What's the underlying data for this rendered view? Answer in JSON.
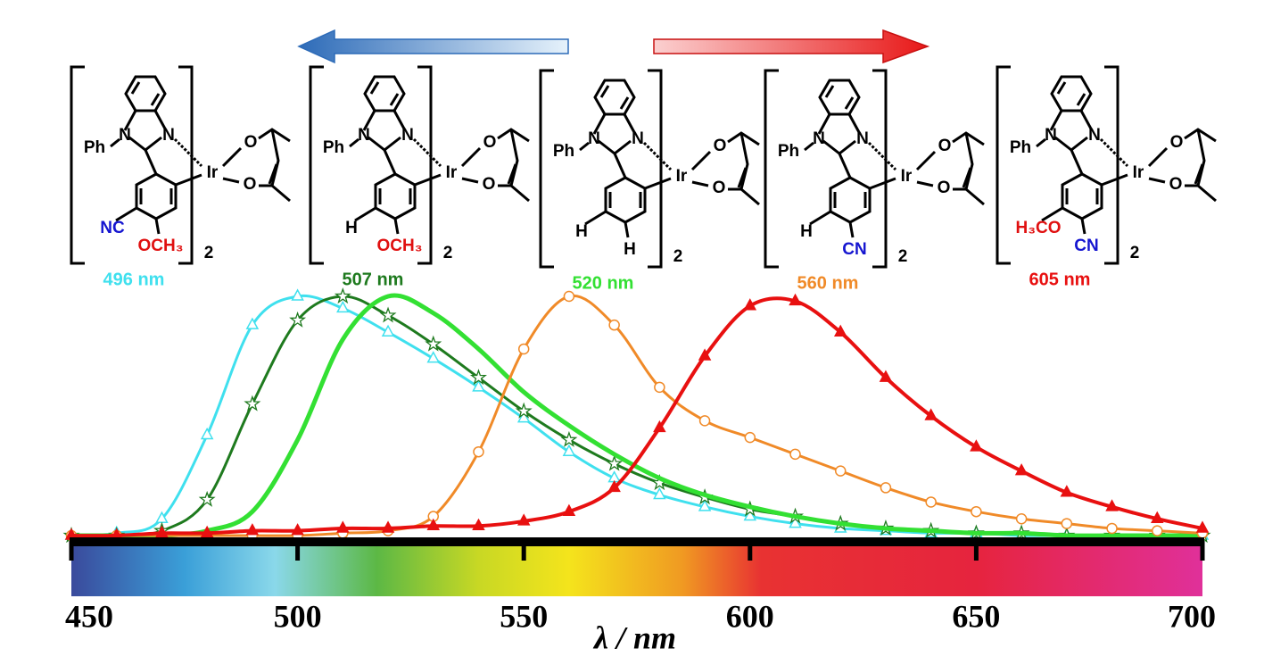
{
  "chart_data": {
    "type": "line",
    "x": [
      450,
      460,
      470,
      480,
      490,
      500,
      510,
      520,
      530,
      540,
      550,
      560,
      570,
      580,
      590,
      600,
      610,
      620,
      630,
      640,
      650,
      660,
      670,
      680,
      690,
      700
    ],
    "series": [
      {
        "name": "496 nm",
        "color": "#3fe0ee",
        "marker": "triangle-open",
        "values": [
          0,
          0.01,
          0.07,
          0.42,
          0.88,
          1.0,
          0.95,
          0.85,
          0.74,
          0.62,
          0.49,
          0.35,
          0.24,
          0.17,
          0.12,
          0.08,
          0.05,
          0.03,
          0.02,
          0.01,
          0.01,
          0,
          0,
          0,
          0,
          0
        ]
      },
      {
        "name": "507 nm",
        "color": "#1e7a1e",
        "marker": "star-open",
        "values": [
          0,
          0,
          0.02,
          0.15,
          0.55,
          0.9,
          1.0,
          0.92,
          0.8,
          0.66,
          0.52,
          0.4,
          0.3,
          0.22,
          0.16,
          0.11,
          0.08,
          0.05,
          0.03,
          0.02,
          0.01,
          0.01,
          0,
          0,
          0,
          0
        ]
      },
      {
        "name": "520 nm",
        "color": "#33e033",
        "marker": "none",
        "values": [
          0,
          0,
          0,
          0.02,
          0.1,
          0.4,
          0.82,
          1.0,
          0.93,
          0.78,
          0.6,
          0.46,
          0.34,
          0.24,
          0.17,
          0.12,
          0.08,
          0.05,
          0.03,
          0.02,
          0.01,
          0.01,
          0,
          0,
          0,
          0
        ]
      },
      {
        "name": "560 nm",
        "color": "#f08a28",
        "marker": "circle-open",
        "values": [
          0,
          0,
          0,
          0,
          0,
          0,
          0.01,
          0.02,
          0.08,
          0.35,
          0.78,
          1.0,
          0.88,
          0.62,
          0.48,
          0.41,
          0.34,
          0.27,
          0.2,
          0.14,
          0.1,
          0.07,
          0.05,
          0.03,
          0.02,
          0.01
        ]
      },
      {
        "name": "605 nm",
        "color": "#e81010",
        "marker": "triangle-filled",
        "values": [
          0,
          0,
          0.01,
          0.01,
          0.02,
          0.02,
          0.03,
          0.03,
          0.04,
          0.04,
          0.06,
          0.1,
          0.2,
          0.45,
          0.75,
          0.96,
          0.98,
          0.85,
          0.66,
          0.5,
          0.37,
          0.27,
          0.18,
          0.12,
          0.07,
          0.03
        ]
      }
    ],
    "xlim": [
      450,
      700
    ],
    "xticks": [
      450,
      500,
      550,
      600,
      650,
      700
    ],
    "ylim": [
      0,
      1.0
    ],
    "x_label": "λ / nm"
  },
  "structures": {
    "common": {
      "phenyl": "Ph",
      "nitrogen": "N",
      "iridium": "Ir",
      "oxygen": "O",
      "count": "2"
    },
    "items": [
      {
        "left": {
          "text": "NC",
          "color": "#1515d0"
        },
        "bottom": {
          "text": "OCH₃",
          "color": "#e01010"
        },
        "wavelength": "496 nm",
        "color": "#3fe0ee"
      },
      {
        "left": {
          "text": "H",
          "color": "#000000"
        },
        "bottom": {
          "text": "OCH₃",
          "color": "#e01010"
        },
        "wavelength": "507 nm",
        "color": "#1e7a1e"
      },
      {
        "left": {
          "text": "H",
          "color": "#000000"
        },
        "bottom": {
          "text": "H",
          "color": "#000000"
        },
        "wavelength": "520 nm",
        "color": "#33e033"
      },
      {
        "left": {
          "text": "H",
          "color": "#000000"
        },
        "bottom": {
          "text": "CN",
          "color": "#1515d0"
        },
        "wavelength": "560 nm",
        "color": "#f08a28"
      },
      {
        "left": {
          "text": "H₃CO",
          "color": "#e01010"
        },
        "bottom": {
          "text": "CN",
          "color": "#1515d0"
        },
        "wavelength": "605 nm",
        "color": "#e81010"
      }
    ]
  }
}
